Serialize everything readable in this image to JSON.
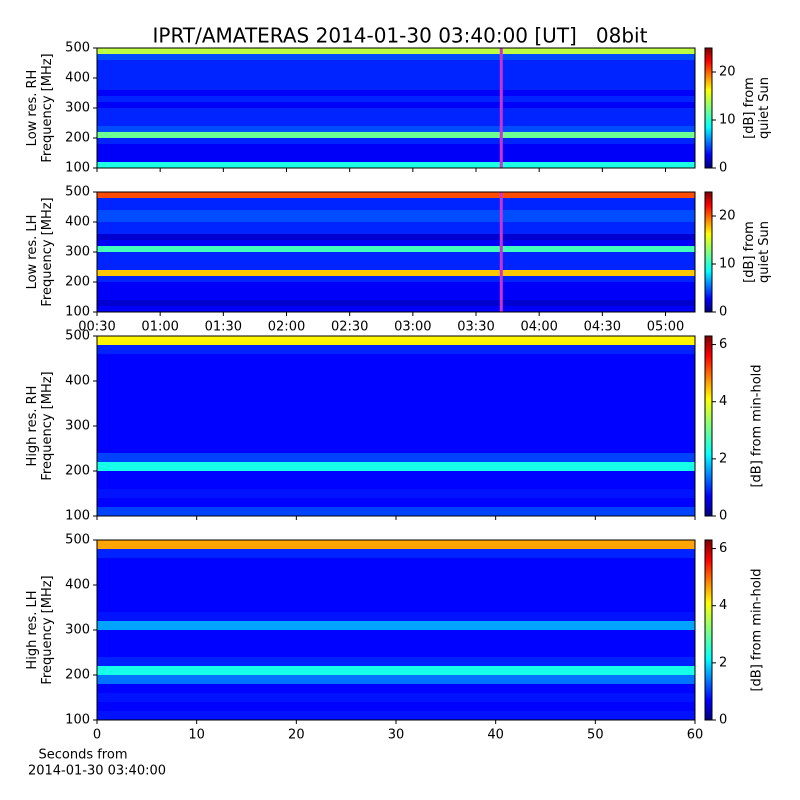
{
  "title": "IPRT/AMATERAS 2014-01-30 03:40:00 [UT]   08bit",
  "chart_data": [
    {
      "type": "heatmap",
      "colormap": "jet",
      "ylabel": [
        "Low res. RH",
        "Frequency [MHz]"
      ],
      "xlim": [
        30,
        314
      ],
      "ylim": [
        100,
        500
      ],
      "yticks": [
        100,
        200,
        300,
        400,
        500
      ],
      "xticks": [
        {
          "value": 30,
          "label": "00:30"
        },
        {
          "value": 60,
          "label": "01:00"
        },
        {
          "value": 90,
          "label": "01:30"
        },
        {
          "value": 120,
          "label": "02:00"
        },
        {
          "value": 150,
          "label": "02:30"
        },
        {
          "value": 180,
          "label": "03:00"
        },
        {
          "value": 210,
          "label": "03:30"
        },
        {
          "value": 240,
          "label": "04:00"
        },
        {
          "value": 270,
          "label": "04:30"
        },
        {
          "value": 300,
          "label": "05:00"
        }
      ],
      "show_xticklabels": false,
      "y_bins": [
        100,
        120,
        140,
        160,
        180,
        200,
        220,
        240,
        260,
        280,
        300,
        320,
        340,
        360,
        380,
        400,
        420,
        440,
        460,
        480,
        500
      ],
      "values": [
        10,
        3,
        3,
        3,
        4,
        12,
        5,
        4,
        4,
        4,
        3,
        4,
        3,
        4,
        4,
        4,
        4,
        4,
        5,
        14
      ],
      "clim": [
        0,
        25
      ],
      "cticks": [
        0,
        10,
        20
      ],
      "clabel": [
        "[dB] from",
        "quiet Sun"
      ],
      "marker_x": 222,
      "marker_color": "#cc33cc"
    },
    {
      "type": "heatmap",
      "colormap": "jet",
      "ylabel": [
        "Low res. LH",
        "Frequency [MHz]"
      ],
      "xlim": [
        30,
        314
      ],
      "ylim": [
        100,
        500
      ],
      "yticks": [
        100,
        200,
        300,
        400,
        500
      ],
      "xticks": [
        {
          "value": 30,
          "label": "00:30"
        },
        {
          "value": 60,
          "label": "01:00"
        },
        {
          "value": 90,
          "label": "01:30"
        },
        {
          "value": 120,
          "label": "02:00"
        },
        {
          "value": 150,
          "label": "02:30"
        },
        {
          "value": 180,
          "label": "03:00"
        },
        {
          "value": 210,
          "label": "03:30"
        },
        {
          "value": 240,
          "label": "04:00"
        },
        {
          "value": 270,
          "label": "04:30"
        },
        {
          "value": 300,
          "label": "05:00"
        }
      ],
      "show_xticklabels": true,
      "y_bins": [
        100,
        120,
        140,
        160,
        180,
        200,
        220,
        240,
        260,
        280,
        300,
        320,
        340,
        360,
        380,
        400,
        420,
        440,
        460,
        480,
        500
      ],
      "values": [
        3,
        2,
        3,
        3,
        3,
        4,
        17,
        4,
        4,
        4,
        11,
        3,
        2,
        4,
        4,
        5,
        5,
        4,
        4,
        20
      ],
      "clim": [
        0,
        25
      ],
      "cticks": [
        0,
        10,
        20
      ],
      "clabel": [
        "[dB] from",
        "quiet Sun"
      ],
      "marker_x": 222,
      "marker_color": "#cc33cc"
    },
    {
      "type": "heatmap",
      "colormap": "jet",
      "ylabel": [
        "High res. RH",
        "Frequency [MHz]"
      ],
      "xlim": [
        0,
        60
      ],
      "ylim": [
        100,
        500
      ],
      "yticks": [
        100,
        200,
        300,
        400,
        500
      ],
      "xticks": [
        0,
        10,
        20,
        30,
        40,
        50,
        60
      ],
      "show_xticklabels": false,
      "y_bins": [
        100,
        120,
        140,
        160,
        180,
        200,
        220,
        240,
        260,
        280,
        300,
        320,
        340,
        360,
        380,
        400,
        420,
        440,
        460,
        480,
        500
      ],
      "values": [
        1.2,
        0.8,
        0.9,
        0.8,
        0.8,
        2.5,
        1.2,
        0.8,
        0.8,
        0.8,
        0.8,
        0.8,
        0.8,
        0.8,
        0.8,
        0.8,
        0.8,
        0.8,
        1.0,
        4
      ],
      "clim": [
        0,
        6.3
      ],
      "cticks": [
        0,
        2,
        4,
        6
      ],
      "clabel": [
        "[dB] from min-hold"
      ]
    },
    {
      "type": "heatmap",
      "colormap": "jet",
      "ylabel": [
        "High res. LH",
        "Frequency [MHz]"
      ],
      "xlim": [
        0,
        60
      ],
      "ylim": [
        100,
        500
      ],
      "yticks": [
        100,
        200,
        300,
        400,
        500
      ],
      "xticks": [
        0,
        10,
        20,
        30,
        40,
        50,
        60
      ],
      "show_xticklabels": true,
      "xlabel": [
        "Seconds from",
        "2014-01-30 03:40:00"
      ],
      "y_bins": [
        100,
        120,
        140,
        160,
        180,
        200,
        220,
        240,
        260,
        280,
        300,
        320,
        340,
        360,
        380,
        400,
        420,
        440,
        460,
        480,
        500
      ],
      "values": [
        0.9,
        0.8,
        0.9,
        0.8,
        1.5,
        2.5,
        1.0,
        0.8,
        0.8,
        0.8,
        1.8,
        0.9,
        0.8,
        0.8,
        0.8,
        0.8,
        0.8,
        0.8,
        1.0,
        4.5
      ],
      "clim": [
        0,
        6.3
      ],
      "cticks": [
        0,
        2,
        4,
        6
      ],
      "clabel": [
        "[dB] from min-hold"
      ]
    }
  ]
}
